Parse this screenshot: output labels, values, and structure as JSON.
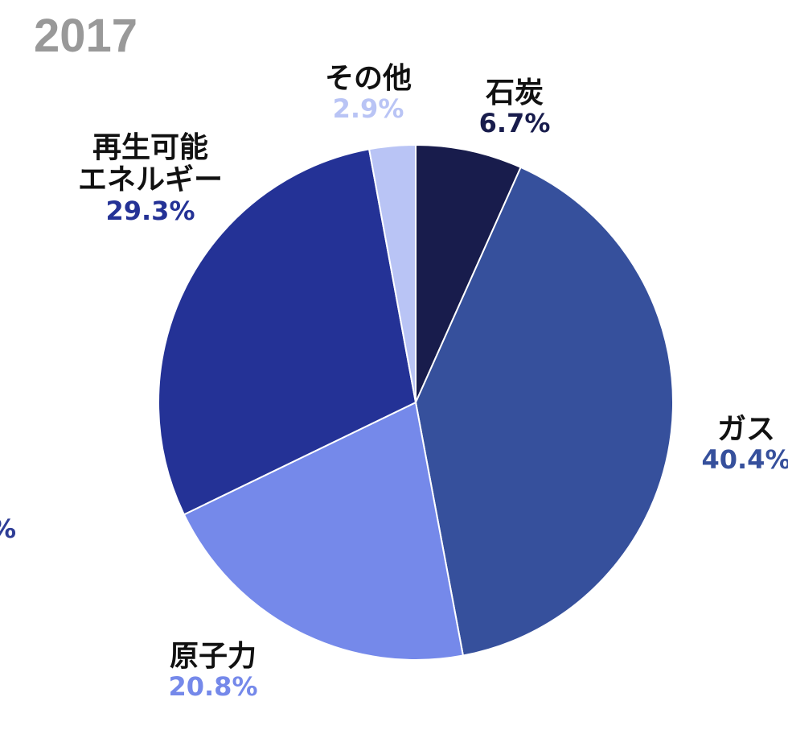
{
  "chart_data": {
    "type": "pie",
    "title": "2017",
    "slices": [
      {
        "name": "石炭",
        "value": 6.7,
        "label": "6.7%",
        "color": "#181c4c",
        "pct_color": "#181c4c"
      },
      {
        "name": "ガス",
        "value": 40.4,
        "label": "40.4%",
        "color": "#36509c",
        "pct_color": "#36509c"
      },
      {
        "name": "原子力",
        "value": 20.8,
        "label": "20.8%",
        "color": "#7589ea",
        "pct_color": "#7589ea"
      },
      {
        "name": "再生可能\nエネルギー",
        "value": 29.3,
        "label": "29.3%",
        "color": "#243296",
        "pct_color": "#243296"
      },
      {
        "name": "その他",
        "value": 2.9,
        "label": "2.9%",
        "color": "#b9c4f5",
        "pct_color": "#b9c4f5"
      }
    ],
    "start": "12 o'clock",
    "direction": "clockwise"
  },
  "fragments": {
    "left_edge": "%"
  }
}
